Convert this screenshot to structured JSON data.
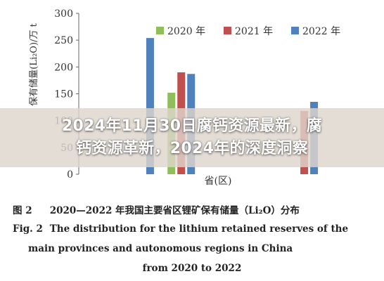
{
  "chart_data": {
    "type": "bar",
    "ylabel": "保有储量(Li₂O)/万 t",
    "xlabel": "省(区)",
    "ylim": [
      0,
      300
    ],
    "yticks": [
      "0",
      "50",
      "100",
      "150",
      "200",
      "250",
      "300"
    ],
    "legend_position": "top-right",
    "series": [
      {
        "name": "2020 年",
        "color": "#8fbf5a",
        "values": [
          0,
          0,
          152,
          0,
          0,
          0,
          0
        ]
      },
      {
        "name": "2021 年",
        "color": "#c0504d",
        "values": [
          0,
          0,
          190,
          0,
          0,
          118,
          0
        ]
      },
      {
        "name": "2022 年",
        "color": "#4f81bd",
        "values": [
          0,
          254,
          187,
          0,
          0,
          135,
          0
        ]
      }
    ],
    "categories": [
      "",
      "",
      "",
      "",
      "",
      "",
      ""
    ]
  },
  "overlay": {
    "title_line1": "2024年11月30日腐钙资源最新，腐",
    "title_line2": "钙资源革新，2024年的深度洞察"
  },
  "caption": {
    "cn_label": "图 2",
    "cn_text": "2020—2022 年我国主要省区锂矿保有储量（Li₂O）分布",
    "en_label": "Fig. 2",
    "en_text1": "The distribution for the lithium retained reserves of the",
    "en_text2": "main provinces and autonomous regions in China",
    "en_text3": "from 2020 to 2022"
  }
}
